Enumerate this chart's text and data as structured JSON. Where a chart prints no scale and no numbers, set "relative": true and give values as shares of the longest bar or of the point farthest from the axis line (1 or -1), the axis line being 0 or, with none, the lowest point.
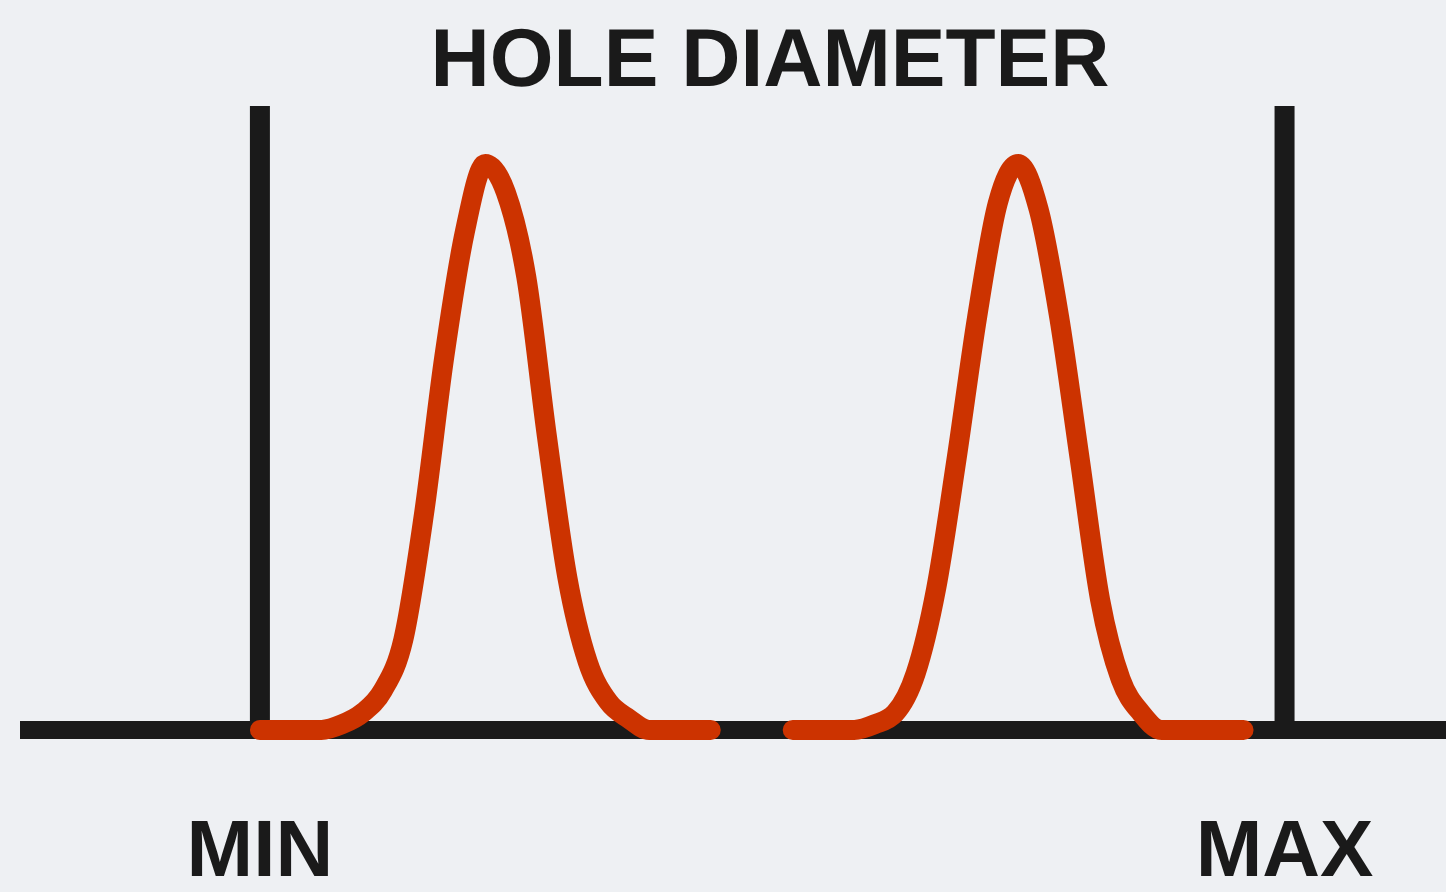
{
  "chart_data": {
    "type": "line",
    "title": "HOLE DIAMETER",
    "relative": true,
    "categories": [
      null,
      null,
      null,
      null,
      null,
      null,
      null,
      null,
      null,
      null,
      null,
      null,
      "MIN",
      null,
      null,
      null,
      null,
      null,
      null,
      null,
      null,
      null,
      null,
      null,
      null,
      null,
      null,
      null,
      null,
      null,
      null,
      null,
      null,
      null,
      null,
      null,
      null,
      null,
      null,
      null,
      null,
      null,
      null,
      null,
      null,
      null,
      null,
      null,
      null,
      null,
      null,
      null,
      null,
      null,
      null,
      null,
      null,
      null,
      null,
      null,
      null,
      null,
      "MAX",
      null,
      null,
      null,
      null,
      null,
      null,
      null
    ],
    "series": [
      {
        "color": "#cc3300",
        "values": [
          null,
          null,
          null,
          null,
          null,
          null,
          null,
          null,
          null,
          null,
          null,
          null,
          0,
          0,
          0,
          0,
          0.01,
          0.03,
          0.07,
          0.16,
          0.38,
          0.66,
          0.88,
          1,
          0.95,
          0.8,
          0.52,
          0.27,
          0.12,
          0.05,
          0.02,
          0,
          0,
          0,
          0,
          null,
          null,
          null,
          null,
          null,
          null,
          null,
          null,
          null,
          null,
          null,
          null,
          null,
          null,
          null,
          null,
          null,
          null,
          null,
          null,
          null,
          null,
          null,
          null,
          null,
          null,
          null,
          null,
          null,
          null,
          null,
          null,
          null,
          null,
          null
        ]
      },
      {
        "color": "#cc3300",
        "values": [
          null,
          null,
          null,
          null,
          null,
          null,
          null,
          null,
          null,
          null,
          null,
          null,
          null,
          null,
          null,
          null,
          null,
          null,
          null,
          null,
          null,
          null,
          null,
          null,
          null,
          null,
          null,
          null,
          null,
          null,
          null,
          null,
          null,
          null,
          null,
          null,
          null,
          null,
          0,
          0,
          0,
          0,
          0.01,
          0.03,
          0.1,
          0.25,
          0.48,
          0.73,
          0.93,
          1,
          0.92,
          0.73,
          0.48,
          0.23,
          0.09,
          0.03,
          0,
          0,
          0,
          0,
          0,
          null,
          null,
          null,
          null,
          null,
          null,
          null,
          null,
          null
        ]
      }
    ],
    "ref_lines": [
      {
        "axis": "x",
        "value": "MIN",
        "color": "#1a1a1a"
      },
      {
        "axis": "x",
        "value": "MAX",
        "color": "#1a1a1a"
      }
    ]
  }
}
